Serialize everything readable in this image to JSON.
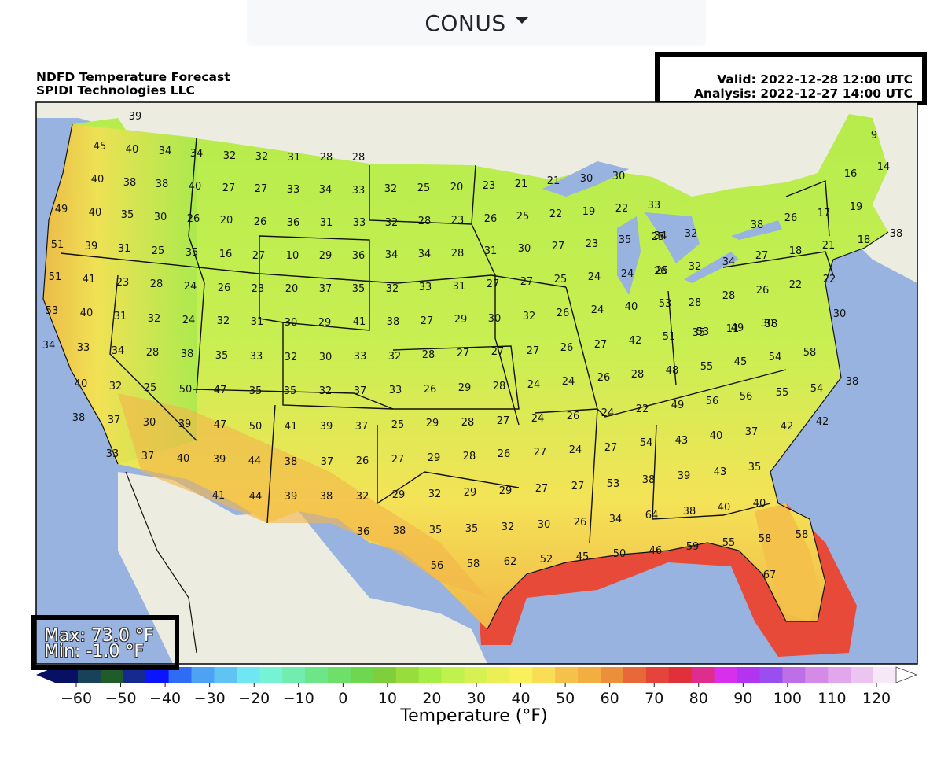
{
  "region_selector": {
    "label": "CONUS"
  },
  "title": {
    "line1": "NDFD Temperature Forecast",
    "line2": "SPIDI Technologies LLC"
  },
  "times": {
    "valid": "Valid: 2022-12-28 12:00 UTC",
    "analysis": "Analysis: 2022-12-27 14:00 UTC"
  },
  "stats": {
    "max": "Max: 73.0 °F",
    "min": "Min: -1.0 °F"
  },
  "colorbar": {
    "label": "Temperature (°F)",
    "ticks": [
      "−60",
      "−50",
      "−40",
      "−30",
      "−20",
      "−10",
      "0",
      "10",
      "20",
      "30",
      "40",
      "50",
      "60",
      "70",
      "80",
      "90",
      "100",
      "110",
      "120"
    ],
    "colors": [
      "#081063",
      "#17425a",
      "#1f5c2a",
      "#142a8f",
      "#0a14ff",
      "#2f6cf6",
      "#4ea2f4",
      "#5fc4f2",
      "#6fe6f2",
      "#76f2d4",
      "#73ecaf",
      "#6fe58a",
      "#6ee06a",
      "#6dd84f",
      "#7fcf3d",
      "#98dd3c",
      "#a6ee45",
      "#bff24d",
      "#d7f052",
      "#e9ef55",
      "#f9f15b",
      "#f8dd55",
      "#f4c24a",
      "#f3ae42",
      "#ec8f3a",
      "#e8683a",
      "#e5443a",
      "#e2303a",
      "#df2d8d",
      "#d72fec",
      "#b233f0",
      "#9b4ef0",
      "#be6ee6",
      "#d48ae6",
      "#e2a6ec",
      "#ecc4f2",
      "#f7e8f8"
    ],
    "accent_colors": {
      "ocean": "#98b3df",
      "land": "#edece0"
    }
  },
  "map": {
    "state_label_values": [
      "39",
      "45",
      "40",
      "34",
      "34",
      "32",
      "32",
      "31",
      "28",
      "28",
      "40",
      "38",
      "38",
      "40",
      "27",
      "27",
      "33",
      "34",
      "33",
      "32",
      "25",
      "20",
      "23",
      "21",
      "21",
      "30",
      "30",
      "9",
      "16",
      "14",
      "49",
      "40",
      "35",
      "30",
      "26",
      "20",
      "26",
      "36",
      "31",
      "33",
      "32",
      "28",
      "23",
      "26",
      "25",
      "22",
      "19",
      "22",
      "33",
      "25",
      "32",
      "38",
      "26",
      "17",
      "19",
      "38",
      "51",
      "39",
      "31",
      "25",
      "35",
      "16",
      "27",
      "10",
      "29",
      "36",
      "34",
      "34",
      "28",
      "31",
      "30",
      "27",
      "23",
      "35",
      "34",
      "25",
      "32",
      "34",
      "27",
      "18",
      "21",
      "18",
      "51",
      "41",
      "23",
      "28",
      "24",
      "26",
      "23",
      "20",
      "37",
      "35",
      "32",
      "33",
      "31",
      "27",
      "27",
      "25",
      "24",
      "24",
      "26",
      "28",
      "28",
      "26",
      "22",
      "22",
      "53",
      "40",
      "31",
      "32",
      "24",
      "32",
      "31",
      "30",
      "29",
      "41",
      "38",
      "27",
      "29",
      "30",
      "32",
      "26",
      "24",
      "40",
      "53",
      "35",
      "11",
      "30",
      "30",
      "34",
      "33",
      "34",
      "28",
      "38",
      "35",
      "33",
      "32",
      "30",
      "33",
      "32",
      "28",
      "27",
      "27",
      "27",
      "26",
      "27",
      "42",
      "51",
      "53",
      "49",
      "38",
      "40",
      "32",
      "25",
      "50",
      "47",
      "35",
      "35",
      "32",
      "37",
      "33",
      "26",
      "29",
      "28",
      "24",
      "24",
      "26",
      "28",
      "48",
      "55",
      "45",
      "54",
      "58",
      "38",
      "38",
      "37",
      "30",
      "39",
      "47",
      "50",
      "41",
      "39",
      "37",
      "25",
      "29",
      "28",
      "27",
      "24",
      "26",
      "24",
      "22",
      "49",
      "56",
      "56",
      "55",
      "54",
      "42",
      "33",
      "37",
      "40",
      "39",
      "44",
      "38",
      "37",
      "26",
      "27",
      "29",
      "28",
      "26",
      "27",
      "24",
      "27",
      "54",
      "43",
      "40",
      "37",
      "42",
      "41",
      "44",
      "39",
      "38",
      "32",
      "29",
      "32",
      "29",
      "29",
      "27",
      "27",
      "53",
      "38",
      "39",
      "43",
      "35",
      "36",
      "38",
      "35",
      "35",
      "32",
      "30",
      "26",
      "34",
      "64",
      "38",
      "40",
      "40",
      "58",
      "58",
      "56",
      "58",
      "62",
      "52",
      "45",
      "50",
      "46",
      "59",
      "55",
      "67"
    ]
  }
}
